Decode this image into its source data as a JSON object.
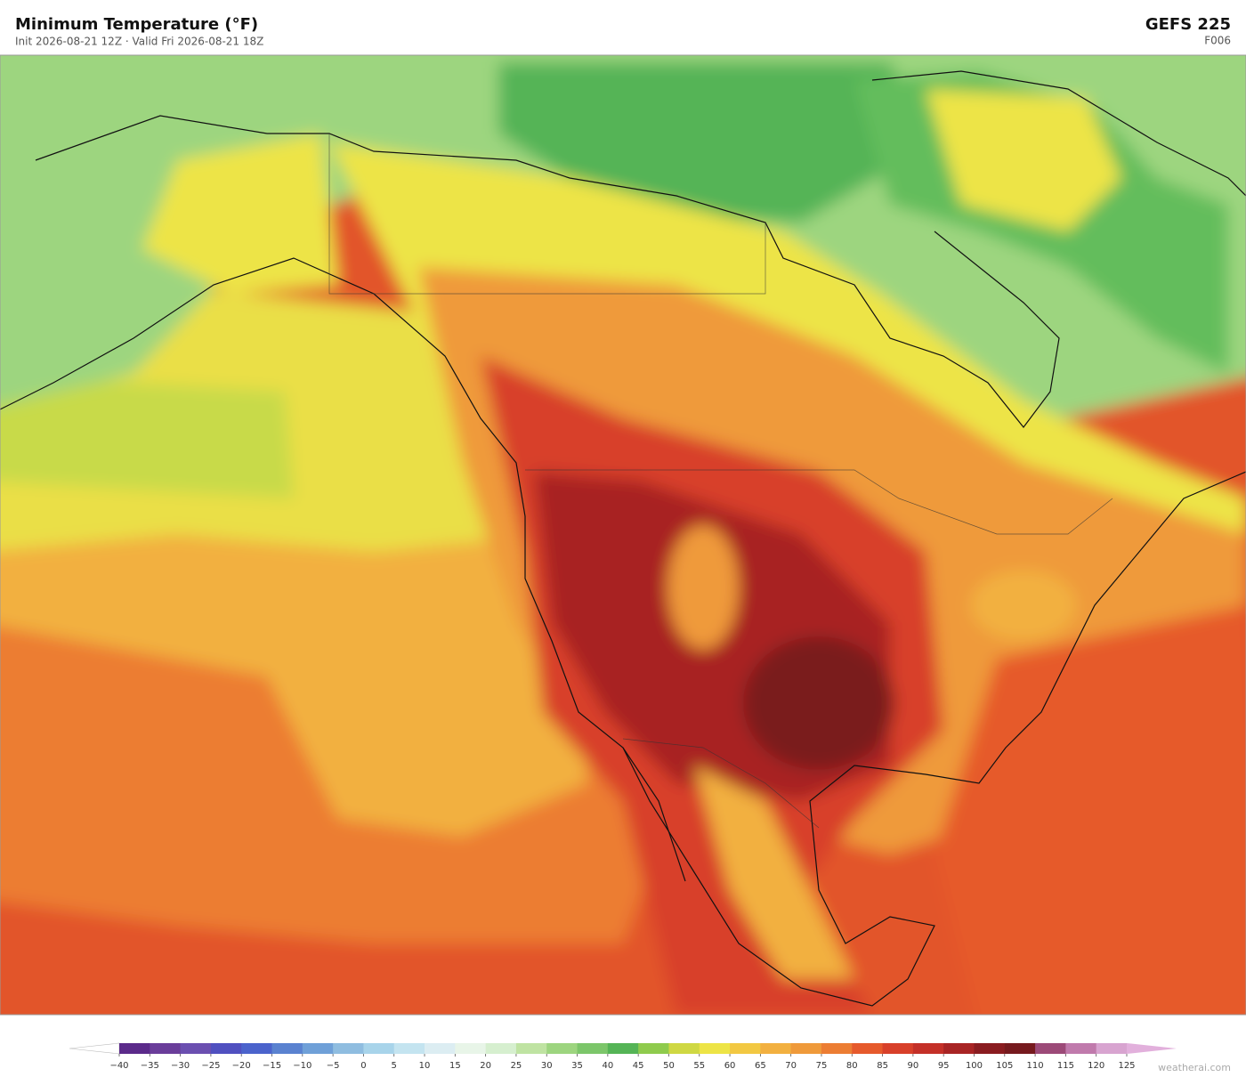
{
  "header": {
    "title": "Minimum Temperature  (°F)",
    "subtitle": "Init 2026-08-21 12Z   ·   Valid Fri 2026-08-21 18Z",
    "model": "GEFS  225",
    "forecast_hour": "F006"
  },
  "colorbar": {
    "ticks": [
      "−40",
      "−35",
      "−30",
      "−25",
      "−20",
      "−15",
      "−10",
      "−5",
      "0",
      "5",
      "10",
      "15",
      "20",
      "25",
      "30",
      "35",
      "40",
      "45",
      "50",
      "55",
      "60",
      "65",
      "70",
      "75",
      "80",
      "85",
      "90",
      "95",
      "100",
      "105",
      "110",
      "115",
      "120",
      "125"
    ],
    "colors": [
      "#5b2a8a",
      "#6a3d9a",
      "#6b4fb0",
      "#5050c0",
      "#4b63cc",
      "#5a82d0",
      "#6fa0d8",
      "#8fbde0",
      "#a8d4ea",
      "#c4e4f0",
      "#dcedf2",
      "#e8f5e8",
      "#d6efcf",
      "#bfe3a2",
      "#9dd57f",
      "#7cc66a",
      "#55b456",
      "#8fcb4d",
      "#cfd843",
      "#ede446",
      "#f2c842",
      "#f2b040",
      "#ef9a3a",
      "#ec7d33",
      "#e65a2c",
      "#d8402a",
      "#c43028",
      "#a82424",
      "#8a1c20",
      "#761a1e",
      "#9c4a78",
      "#c07aac",
      "#d8a4d0"
    ],
    "under_color": "#ffffff",
    "over_color": "#e2b0dc"
  },
  "watermark": "weatherai.com"
}
